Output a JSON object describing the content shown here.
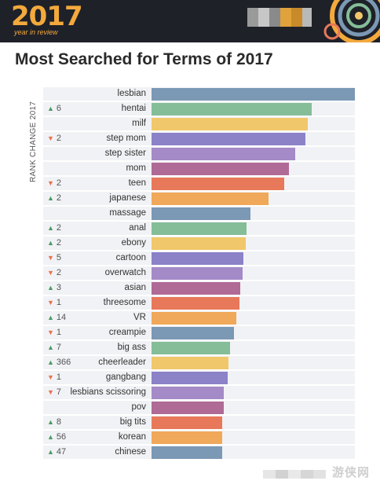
{
  "header": {
    "brand_year": "2017",
    "brand_sub": "year in review",
    "colors": {
      "background": "#1f2129",
      "accent": "#f3a93c"
    }
  },
  "watermark": {
    "text": "游侠网"
  },
  "chart_data": {
    "type": "bar",
    "orientation": "horizontal",
    "title": "Most Searched for Terms of 2017",
    "rank_change_label": "RANK CHANGE 2017",
    "colors": [
      "#7b98b5",
      "#84bd98",
      "#f0c76a",
      "#8b82c8",
      "#a48ac7",
      "#b06a96",
      "#e8785a",
      "#f0a85a"
    ],
    "rows": [
      {
        "term": "lesbian",
        "value": 100,
        "change": "",
        "direction": ""
      },
      {
        "term": "hentai",
        "value": 78.6,
        "change": "6",
        "direction": "up"
      },
      {
        "term": "milf",
        "value": 76.8,
        "change": "",
        "direction": ""
      },
      {
        "term": "step mom",
        "value": 75.8,
        "change": "2",
        "direction": "down"
      },
      {
        "term": "step sister",
        "value": 70.8,
        "change": "",
        "direction": ""
      },
      {
        "term": "mom",
        "value": 67.6,
        "change": "",
        "direction": ""
      },
      {
        "term": "teen",
        "value": 65.2,
        "change": "2",
        "direction": "down"
      },
      {
        "term": "japanese",
        "value": 57.6,
        "change": "2",
        "direction": "up"
      },
      {
        "term": "massage",
        "value": 48.6,
        "change": "",
        "direction": ""
      },
      {
        "term": "anal",
        "value": 46.8,
        "change": "2",
        "direction": "up"
      },
      {
        "term": "ebony",
        "value": 46.4,
        "change": "2",
        "direction": "up"
      },
      {
        "term": "cartoon",
        "value": 45.2,
        "change": "5",
        "direction": "down"
      },
      {
        "term": "overwatch",
        "value": 44.6,
        "change": "2",
        "direction": "down"
      },
      {
        "term": "asian",
        "value": 43.8,
        "change": "3",
        "direction": "up"
      },
      {
        "term": "threesome",
        "value": 43.4,
        "change": "1",
        "direction": "down"
      },
      {
        "term": "VR",
        "value": 41.8,
        "change": "14",
        "direction": "up"
      },
      {
        "term": "creampie",
        "value": 40.6,
        "change": "1",
        "direction": "down"
      },
      {
        "term": "big ass",
        "value": 38.6,
        "change": "7",
        "direction": "up"
      },
      {
        "term": "cheerleader",
        "value": 37.8,
        "change": "366",
        "direction": "up"
      },
      {
        "term": "gangbang",
        "value": 37.6,
        "change": "1",
        "direction": "down"
      },
      {
        "term": "lesbians scissoring",
        "value": 35.6,
        "change": "7",
        "direction": "down"
      },
      {
        "term": "pov",
        "value": 35.6,
        "change": "",
        "direction": ""
      },
      {
        "term": "big tits",
        "value": 34.8,
        "change": "8",
        "direction": "up"
      },
      {
        "term": "korean",
        "value": 34.6,
        "change": "56",
        "direction": "up"
      },
      {
        "term": "chinese",
        "value": 34.6,
        "change": "47",
        "direction": "up"
      }
    ]
  }
}
